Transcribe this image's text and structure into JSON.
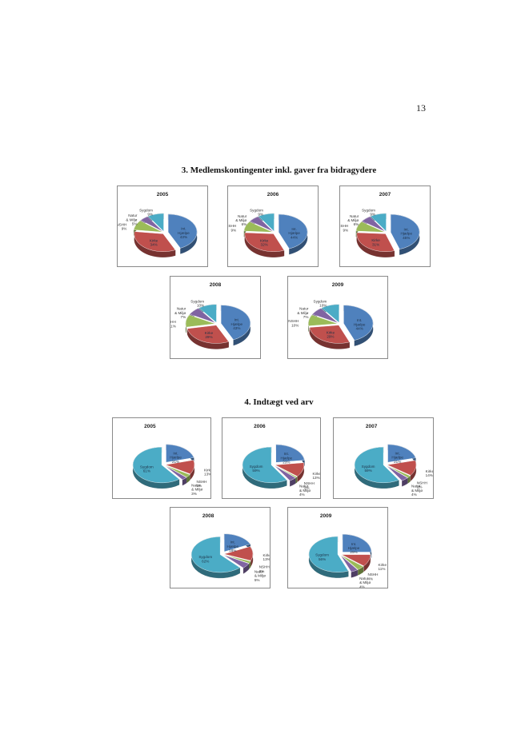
{
  "page_number": "13",
  "colors": {
    "int_hjaelpe": "#4f81bd",
    "kirke": "#c0504d",
    "nshh": "#9bbb59",
    "natur_miljoe": "#8064a2",
    "sygdom": "#4bacc6"
  },
  "sections": [
    {
      "title": "3. Medlemskontingenter inkl. gaver fra bidragydere"
    },
    {
      "title": "4. Indtægt ved arv"
    }
  ],
  "chart_data": [
    {
      "section": 3,
      "type": "pie",
      "title": "2005",
      "slices": [
        {
          "label": "Int. Hjælpe",
          "value": 43,
          "display": "43%",
          "color": "#4f81bd"
        },
        {
          "label": "Kirke",
          "value": 34,
          "display": "34%",
          "color": "#c0504d"
        },
        {
          "label": "NSHH",
          "value": 9,
          "display": "9%",
          "color": "#9bbb59"
        },
        {
          "label": "Natur & Miljø",
          "value": 5,
          "display": "5%",
          "color": "#8064a2"
        },
        {
          "label": "Sygdom",
          "value": 9,
          "display": "9%",
          "color": "#4bacc6"
        }
      ]
    },
    {
      "section": 3,
      "type": "pie",
      "title": "2006",
      "slices": [
        {
          "label": "Int. Hjælpe",
          "value": 44,
          "display": "44%",
          "color": "#4f81bd"
        },
        {
          "label": "Kirke",
          "value": 32,
          "display": "32%",
          "color": "#c0504d"
        },
        {
          "label": "NSHH",
          "value": 9,
          "display": "9%",
          "color": "#9bbb59"
        },
        {
          "label": "Natur & Miljø",
          "value": 6,
          "display": "6%",
          "color": "#8064a2"
        },
        {
          "label": "Sygdom",
          "value": 9,
          "display": "9%",
          "color": "#4bacc6"
        }
      ]
    },
    {
      "section": 3,
      "type": "pie",
      "title": "2007",
      "slices": [
        {
          "label": "Int. Hjælpe",
          "value": 45,
          "display": "45%",
          "color": "#4f81bd"
        },
        {
          "label": "Kirke",
          "value": 31,
          "display": "31%",
          "color": "#c0504d"
        },
        {
          "label": "NSHH",
          "value": 9,
          "display": "9%",
          "color": "#9bbb59"
        },
        {
          "label": "Natur & Miljø",
          "value": 6,
          "display": "6%",
          "color": "#8064a2"
        },
        {
          "label": "Sygdom",
          "value": 9,
          "display": "9%",
          "color": "#4bacc6"
        }
      ]
    },
    {
      "section": 3,
      "type": "pie",
      "title": "2008",
      "slices": [
        {
          "label": "Int. Hjælpe",
          "value": 43,
          "display": "43%",
          "color": "#4f81bd"
        },
        {
          "label": "Kirke",
          "value": 29,
          "display": "29%",
          "color": "#c0504d"
        },
        {
          "label": "NSHH",
          "value": 11,
          "display": "11%",
          "color": "#9bbb59"
        },
        {
          "label": "Natur & Miljø",
          "value": 7,
          "display": "7%",
          "color": "#8064a2"
        },
        {
          "label": "Sygdom",
          "value": 10,
          "display": "10%",
          "color": "#4bacc6"
        }
      ]
    },
    {
      "section": 3,
      "type": "pie",
      "title": "2009",
      "slices": [
        {
          "label": "Int. Hjælpe",
          "value": 44,
          "display": "44%",
          "color": "#4f81bd"
        },
        {
          "label": "Kirke",
          "value": 29,
          "display": "29%",
          "color": "#c0504d"
        },
        {
          "label": "NSHH",
          "value": 10,
          "display": "10%",
          "color": "#9bbb59"
        },
        {
          "label": "Natur & Miljø",
          "value": 7,
          "display": "7%",
          "color": "#8064a2"
        },
        {
          "label": "Sygdom",
          "value": 10,
          "display": "10%",
          "color": "#4bacc6"
        }
      ]
    },
    {
      "section": 4,
      "type": "pie",
      "title": "2005",
      "slices": [
        {
          "label": "Int. Hjælpe",
          "value": 21,
          "display": "21%",
          "color": "#4f81bd"
        },
        {
          "label": "Kirke",
          "value": 13,
          "display": "13%",
          "color": "#c0504d"
        },
        {
          "label": "NSHH",
          "value": 3,
          "display": "3%",
          "color": "#9bbb59"
        },
        {
          "label": "Natur & Miljø",
          "value": 3,
          "display": "3%",
          "color": "#8064a2"
        },
        {
          "label": "Sygdom",
          "value": 61,
          "display": "61%",
          "color": "#4bacc6"
        }
      ]
    },
    {
      "section": 4,
      "type": "pie",
      "title": "2006",
      "slices": [
        {
          "label": "Int. Hjælpe",
          "value": 23,
          "display": "23%",
          "color": "#4f81bd"
        },
        {
          "label": "Kirke",
          "value": 13,
          "display": "13%",
          "color": "#c0504d"
        },
        {
          "label": "NSHH",
          "value": 1,
          "display": "1%",
          "color": "#9bbb59"
        },
        {
          "label": "Natur & Miljø",
          "value": 4,
          "display": "4%",
          "color": "#8064a2"
        },
        {
          "label": "Sygdom",
          "value": 59,
          "display": "59%",
          "color": "#4bacc6"
        }
      ]
    },
    {
      "section": 4,
      "type": "pie",
      "title": "2007",
      "slices": [
        {
          "label": "Int. Hjælpe",
          "value": 21,
          "display": "21%",
          "color": "#4f81bd"
        },
        {
          "label": "Kirke",
          "value": 14,
          "display": "14%",
          "color": "#c0504d"
        },
        {
          "label": "NSHH",
          "value": 2,
          "display": "2%",
          "color": "#9bbb59"
        },
        {
          "label": "Natur & Miljø",
          "value": 4,
          "display": "4%",
          "color": "#8064a2"
        },
        {
          "label": "Sygdom",
          "value": 59,
          "display": "59%",
          "color": "#4bacc6"
        }
      ]
    },
    {
      "section": 4,
      "type": "pie",
      "title": "2008",
      "slices": [
        {
          "label": "Int. Hjælpe",
          "value": 18,
          "display": "18%",
          "color": "#4f81bd"
        },
        {
          "label": "Kirke",
          "value": 13,
          "display": "13%",
          "color": "#c0504d"
        },
        {
          "label": "NSHH",
          "value": 2,
          "display": "2%",
          "color": "#9bbb59"
        },
        {
          "label": "Natur & Miljø",
          "value": 5,
          "display": "5%",
          "color": "#8064a2"
        },
        {
          "label": "Sygdom",
          "value": 62,
          "display": "62%",
          "color": "#4bacc6"
        }
      ]
    },
    {
      "section": 4,
      "type": "pie",
      "title": "2009",
      "slices": [
        {
          "label": "Int. Hjælpe",
          "value": 25,
          "display": "25%",
          "color": "#4f81bd"
        },
        {
          "label": "Kirke",
          "value": 11,
          "display": "11%",
          "color": "#c0504d"
        },
        {
          "label": "NSHH",
          "value": 4,
          "display": "4%",
          "color": "#9bbb59"
        },
        {
          "label": "Natur & Miljø",
          "value": 4,
          "display": "4%",
          "color": "#8064a2"
        },
        {
          "label": "Sygdom",
          "value": 56,
          "display": "56%",
          "color": "#4bacc6"
        }
      ]
    }
  ]
}
